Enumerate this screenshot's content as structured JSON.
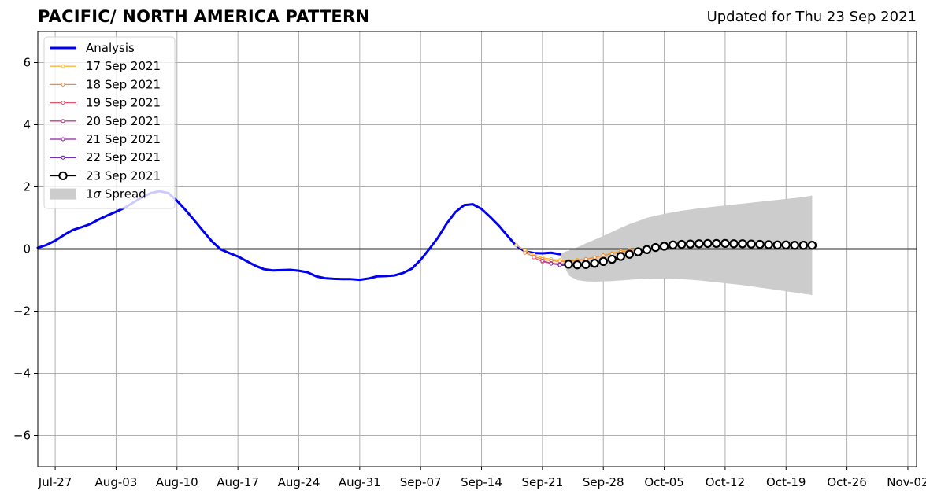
{
  "title": "PACIFIC/ NORTH AMERICA PATTERN",
  "updated": "Updated for Thu 23 Sep 2021",
  "chart_data": {
    "type": "line",
    "title": "PACIFIC/ NORTH AMERICA PATTERN",
    "subtitle": "Updated for Thu 23 Sep 2021",
    "xlim": [
      "2021-07-25",
      "2021-11-03"
    ],
    "ylim": [
      -7,
      7
    ],
    "x_ticks": [
      {
        "date": "2021-07-27",
        "label": "Jul-27"
      },
      {
        "date": "2021-08-03",
        "label": "Aug-03"
      },
      {
        "date": "2021-08-10",
        "label": "Aug-10"
      },
      {
        "date": "2021-08-17",
        "label": "Aug-17"
      },
      {
        "date": "2021-08-24",
        "label": "Aug-24"
      },
      {
        "date": "2021-08-31",
        "label": "Aug-31"
      },
      {
        "date": "2021-09-07",
        "label": "Sep-07"
      },
      {
        "date": "2021-09-14",
        "label": "Sep-14"
      },
      {
        "date": "2021-09-21",
        "label": "Sep-21"
      },
      {
        "date": "2021-09-28",
        "label": "Sep-28"
      },
      {
        "date": "2021-10-05",
        "label": "Oct-05"
      },
      {
        "date": "2021-10-12",
        "label": "Oct-12"
      },
      {
        "date": "2021-10-19",
        "label": "Oct-19"
      },
      {
        "date": "2021-10-26",
        "label": "Oct-26"
      },
      {
        "date": "2021-11-02",
        "label": "Nov-02"
      }
    ],
    "y_ticks": [
      {
        "value": 6,
        "label": "6"
      },
      {
        "value": 4,
        "label": "4"
      },
      {
        "value": 2,
        "label": "2"
      },
      {
        "value": 0,
        "label": "0"
      },
      {
        "value": -2,
        "label": "−2"
      },
      {
        "value": -4,
        "label": "−4"
      },
      {
        "value": -6,
        "label": "−6"
      }
    ],
    "grid": true,
    "legend_position": "top-left",
    "analysis": {
      "name": "Analysis",
      "color": "#0000ee",
      "points": [
        [
          "2021-07-25",
          0.04
        ],
        [
          "2021-07-26",
          0.13
        ],
        [
          "2021-07-27",
          0.27
        ],
        [
          "2021-07-28",
          0.45
        ],
        [
          "2021-07-29",
          0.61
        ],
        [
          "2021-07-30",
          0.7
        ],
        [
          "2021-07-31",
          0.8
        ],
        [
          "2021-08-01",
          0.95
        ],
        [
          "2021-08-02",
          1.08
        ],
        [
          "2021-08-03",
          1.2
        ],
        [
          "2021-08-04",
          1.33
        ],
        [
          "2021-08-05",
          1.5
        ],
        [
          "2021-08-06",
          1.67
        ],
        [
          "2021-08-07",
          1.8
        ],
        [
          "2021-08-08",
          1.86
        ],
        [
          "2021-08-09",
          1.8
        ],
        [
          "2021-08-10",
          1.55
        ],
        [
          "2021-08-11",
          1.25
        ],
        [
          "2021-08-12",
          0.92
        ],
        [
          "2021-08-13",
          0.58
        ],
        [
          "2021-08-14",
          0.25
        ],
        [
          "2021-08-15",
          -0.01
        ],
        [
          "2021-08-16",
          -0.13
        ],
        [
          "2021-08-17",
          -0.24
        ],
        [
          "2021-08-18",
          -0.39
        ],
        [
          "2021-08-19",
          -0.54
        ],
        [
          "2021-08-20",
          -0.65
        ],
        [
          "2021-08-21",
          -0.69
        ],
        [
          "2021-08-22",
          -0.68
        ],
        [
          "2021-08-23",
          -0.67
        ],
        [
          "2021-08-24",
          -0.7
        ],
        [
          "2021-08-25",
          -0.75
        ],
        [
          "2021-08-26",
          -0.88
        ],
        [
          "2021-08-27",
          -0.94
        ],
        [
          "2021-08-28",
          -0.96
        ],
        [
          "2021-08-29",
          -0.97
        ],
        [
          "2021-08-30",
          -0.97
        ],
        [
          "2021-08-31",
          -0.99
        ],
        [
          "2021-09-01",
          -0.95
        ],
        [
          "2021-09-02",
          -0.88
        ],
        [
          "2021-09-03",
          -0.87
        ],
        [
          "2021-09-04",
          -0.85
        ],
        [
          "2021-09-05",
          -0.77
        ],
        [
          "2021-09-06",
          -0.63
        ],
        [
          "2021-09-07",
          -0.35
        ],
        [
          "2021-09-08",
          0.0
        ],
        [
          "2021-09-09",
          0.37
        ],
        [
          "2021-09-10",
          0.82
        ],
        [
          "2021-09-11",
          1.19
        ],
        [
          "2021-09-12",
          1.41
        ],
        [
          "2021-09-13",
          1.44
        ],
        [
          "2021-09-14",
          1.29
        ],
        [
          "2021-09-15",
          1.03
        ],
        [
          "2021-09-16",
          0.75
        ],
        [
          "2021-09-17",
          0.42
        ],
        [
          "2021-09-18",
          0.1
        ],
        [
          "2021-09-19",
          -0.08
        ],
        [
          "2021-09-20",
          -0.13
        ],
        [
          "2021-09-21",
          -0.14
        ],
        [
          "2021-09-22",
          -0.12
        ],
        [
          "2021-09-23",
          -0.17
        ]
      ]
    },
    "forecasts": [
      {
        "name": "17 Sep 2021",
        "color": "#f9b43c",
        "points": [
          [
            "2021-09-18",
            0.12
          ],
          [
            "2021-09-19",
            -0.05
          ],
          [
            "2021-09-20",
            -0.18
          ],
          [
            "2021-09-21",
            -0.28
          ],
          [
            "2021-09-22",
            -0.33
          ],
          [
            "2021-09-23",
            -0.36
          ],
          [
            "2021-09-24",
            -0.37
          ],
          [
            "2021-09-25",
            -0.35
          ],
          [
            "2021-09-26",
            -0.32
          ],
          [
            "2021-09-27",
            -0.27
          ],
          [
            "2021-09-28",
            -0.2
          ],
          [
            "2021-09-29",
            -0.13
          ],
          [
            "2021-09-30",
            -0.07
          ],
          [
            "2021-10-01",
            -0.03
          ],
          [
            "2021-10-02",
            -0.01
          ]
        ]
      },
      {
        "name": "18 Sep 2021",
        "color": "#f08a3c",
        "points": [
          [
            "2021-09-19",
            -0.12
          ],
          [
            "2021-09-20",
            -0.24
          ],
          [
            "2021-09-21",
            -0.33
          ],
          [
            "2021-09-22",
            -0.38
          ],
          [
            "2021-09-23",
            -0.4
          ],
          [
            "2021-09-24",
            -0.4
          ],
          [
            "2021-09-25",
            -0.37
          ],
          [
            "2021-09-26",
            -0.33
          ],
          [
            "2021-09-27",
            -0.27
          ],
          [
            "2021-09-28",
            -0.21
          ],
          [
            "2021-09-29",
            -0.15
          ],
          [
            "2021-09-30",
            -0.1
          ],
          [
            "2021-10-01",
            -0.06
          ],
          [
            "2021-10-02",
            -0.03
          ],
          [
            "2021-10-03",
            -0.01
          ]
        ]
      },
      {
        "name": "19 Sep 2021",
        "color": "#e0586a",
        "points": [
          [
            "2021-09-20",
            -0.27
          ],
          [
            "2021-09-21",
            -0.41
          ],
          [
            "2021-09-22",
            -0.46
          ],
          [
            "2021-09-23",
            -0.48
          ],
          [
            "2021-09-24",
            -0.47
          ]
        ]
      },
      {
        "name": "20 Sep 2021",
        "color": "#c23b8c",
        "points": [
          [
            "2021-09-21",
            -0.38
          ],
          [
            "2021-09-22",
            -0.46
          ],
          [
            "2021-09-23",
            -0.5
          ],
          [
            "2021-09-24",
            -0.51
          ]
        ]
      },
      {
        "name": "21 Sep 2021",
        "color": "#8e1fa5",
        "points": [
          [
            "2021-09-22",
            -0.47
          ],
          [
            "2021-09-23",
            -0.51
          ],
          [
            "2021-09-24",
            -0.53
          ]
        ]
      },
      {
        "name": "22 Sep 2021",
        "color": "#5a14a8",
        "points": [
          [
            "2021-09-23",
            -0.52
          ],
          [
            "2021-09-24",
            -0.53
          ]
        ]
      },
      {
        "name": "23 Sep 2021",
        "color": "#000000",
        "points": [
          [
            "2021-09-24",
            -0.49
          ],
          [
            "2021-09-25",
            -0.51
          ],
          [
            "2021-09-26",
            -0.5
          ],
          [
            "2021-09-27",
            -0.46
          ],
          [
            "2021-09-28",
            -0.4
          ],
          [
            "2021-09-29",
            -0.33
          ],
          [
            "2021-09-30",
            -0.24
          ],
          [
            "2021-10-01",
            -0.17
          ],
          [
            "2021-10-02",
            -0.09
          ],
          [
            "2021-10-03",
            -0.02
          ],
          [
            "2021-10-04",
            0.05
          ],
          [
            "2021-10-05",
            0.09
          ],
          [
            "2021-10-06",
            0.13
          ],
          [
            "2021-10-07",
            0.15
          ],
          [
            "2021-10-08",
            0.16
          ],
          [
            "2021-10-09",
            0.17
          ],
          [
            "2021-10-10",
            0.18
          ],
          [
            "2021-10-11",
            0.18
          ],
          [
            "2021-10-12",
            0.18
          ],
          [
            "2021-10-13",
            0.17
          ],
          [
            "2021-10-14",
            0.17
          ],
          [
            "2021-10-15",
            0.16
          ],
          [
            "2021-10-16",
            0.15
          ],
          [
            "2021-10-17",
            0.14
          ],
          [
            "2021-10-18",
            0.13
          ],
          [
            "2021-10-19",
            0.13
          ],
          [
            "2021-10-20",
            0.12
          ],
          [
            "2021-10-21",
            0.12
          ],
          [
            "2021-10-22",
            0.12
          ]
        ]
      }
    ],
    "spread": {
      "name": "1σ Spread",
      "label_prefix": "1",
      "label_symbol": "σ",
      "label_suffix": " Spread",
      "color": "#cccccc",
      "points": [
        [
          "2021-09-23",
          -0.15,
          -0.15
        ],
        [
          "2021-09-24",
          -0.85,
          -0.05
        ],
        [
          "2021-09-25",
          -1.0,
          0.05
        ],
        [
          "2021-09-26",
          -1.04,
          0.18
        ],
        [
          "2021-09-27",
          -1.05,
          0.3
        ],
        [
          "2021-09-28",
          -1.04,
          0.42
        ],
        [
          "2021-09-29",
          -1.03,
          0.55
        ],
        [
          "2021-09-30",
          -1.01,
          0.68
        ],
        [
          "2021-10-01",
          -0.99,
          0.8
        ],
        [
          "2021-10-02",
          -0.97,
          0.9
        ],
        [
          "2021-10-03",
          -0.96,
          1.0
        ],
        [
          "2021-10-04",
          -0.95,
          1.07
        ],
        [
          "2021-10-05",
          -0.95,
          1.13
        ],
        [
          "2021-10-06",
          -0.96,
          1.18
        ],
        [
          "2021-10-07",
          -0.97,
          1.23
        ],
        [
          "2021-10-08",
          -0.99,
          1.27
        ],
        [
          "2021-10-09",
          -1.01,
          1.31
        ],
        [
          "2021-10-10",
          -1.04,
          1.34
        ],
        [
          "2021-10-11",
          -1.07,
          1.37
        ],
        [
          "2021-10-12",
          -1.1,
          1.4
        ],
        [
          "2021-10-13",
          -1.13,
          1.43
        ],
        [
          "2021-10-14",
          -1.16,
          1.46
        ],
        [
          "2021-10-15",
          -1.2,
          1.49
        ],
        [
          "2021-10-16",
          -1.24,
          1.52
        ],
        [
          "2021-10-17",
          -1.28,
          1.55
        ],
        [
          "2021-10-18",
          -1.32,
          1.58
        ],
        [
          "2021-10-19",
          -1.36,
          1.61
        ],
        [
          "2021-10-20",
          -1.4,
          1.64
        ],
        [
          "2021-10-21",
          -1.44,
          1.67
        ],
        [
          "2021-10-22",
          -1.48,
          1.72
        ]
      ]
    }
  }
}
